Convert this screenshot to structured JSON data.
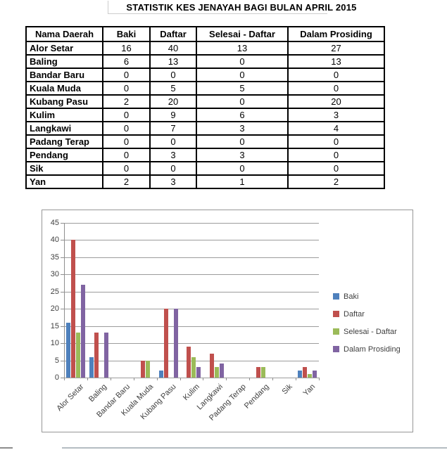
{
  "title": "STATISTIK KES JENAYAH BAGI BULAN APRIL 2015",
  "table": {
    "columns": [
      "Nama Daerah",
      "Baki",
      "Daftar",
      "Selesai - Daftar",
      "Dalam Prosiding"
    ],
    "rows": [
      {
        "daerah": "Alor Setar",
        "values": [
          16,
          40,
          13,
          27
        ]
      },
      {
        "daerah": "Baling",
        "values": [
          6,
          13,
          0,
          13
        ]
      },
      {
        "daerah": "Bandar Baru",
        "values": [
          0,
          0,
          0,
          0
        ]
      },
      {
        "daerah": "Kuala Muda",
        "values": [
          0,
          5,
          5,
          0
        ]
      },
      {
        "daerah": "Kubang Pasu",
        "values": [
          2,
          20,
          0,
          20
        ]
      },
      {
        "daerah": "Kulim",
        "values": [
          0,
          9,
          6,
          3
        ]
      },
      {
        "daerah": "Langkawi",
        "values": [
          0,
          7,
          3,
          4
        ]
      },
      {
        "daerah": "Padang Terap",
        "values": [
          0,
          0,
          0,
          0
        ]
      },
      {
        "daerah": "Pendang",
        "values": [
          0,
          3,
          3,
          0
        ]
      },
      {
        "daerah": "Sik",
        "values": [
          0,
          0,
          0,
          0
        ]
      },
      {
        "daerah": "Yan",
        "values": [
          2,
          3,
          1,
          2
        ]
      }
    ]
  },
  "chart_data": {
    "type": "bar",
    "title": "",
    "categories": [
      "Alor Setar",
      "Baling",
      "Bandar Baru",
      "Kuala Muda",
      "Kubang Pasu",
      "Kulim",
      "Langkawi",
      "Padang Terap",
      "Pendang",
      "Sik",
      "Yan"
    ],
    "series": [
      {
        "name": "Baki",
        "color": "#4F81BD",
        "values": [
          16,
          6,
          0,
          0,
          2,
          0,
          0,
          0,
          0,
          0,
          2
        ]
      },
      {
        "name": "Daftar",
        "color": "#C0504D",
        "values": [
          40,
          13,
          0,
          5,
          20,
          9,
          7,
          0,
          3,
          0,
          3
        ]
      },
      {
        "name": "Selesai - Daftar",
        "color": "#9BBB59",
        "values": [
          13,
          0,
          0,
          5,
          0,
          6,
          3,
          0,
          3,
          0,
          1
        ]
      },
      {
        "name": "Dalam Prosiding",
        "color": "#8064A2",
        "values": [
          27,
          13,
          0,
          0,
          20,
          3,
          4,
          0,
          0,
          0,
          2
        ]
      }
    ],
    "ylim": [
      0,
      45
    ],
    "ytick_step": 5,
    "yticks": [
      0,
      5,
      10,
      15,
      20,
      25,
      30,
      35,
      40,
      45
    ],
    "grid": true,
    "legend_position": "right",
    "xlabel": "",
    "ylabel": ""
  },
  "colors": {
    "table_border": "#000000",
    "chart_border": "#969696",
    "gridline": "#9c9c9c",
    "axis_text": "#3f3f3f"
  }
}
